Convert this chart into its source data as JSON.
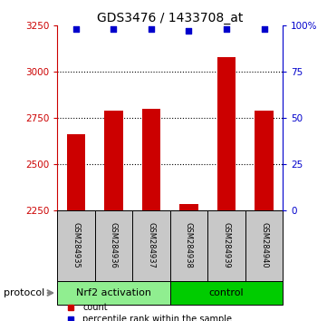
{
  "title": "GDS3476 / 1433708_at",
  "samples": [
    "GSM284935",
    "GSM284936",
    "GSM284937",
    "GSM284938",
    "GSM284939",
    "GSM284940"
  ],
  "counts": [
    2660,
    2790,
    2800,
    2285,
    3080,
    2790
  ],
  "percentiles": [
    98,
    98,
    98,
    97,
    98,
    98
  ],
  "ylim_left": [
    2250,
    3250
  ],
  "ylim_right": [
    0,
    100
  ],
  "yticks_left": [
    2250,
    2500,
    2750,
    3000,
    3250
  ],
  "yticks_right": [
    0,
    25,
    50,
    75,
    100
  ],
  "ytick_labels_right": [
    "0",
    "25",
    "50",
    "75",
    "100%"
  ],
  "groups": [
    {
      "label": "Nrf2 activation",
      "samples": [
        0,
        1,
        2
      ],
      "color": "#90EE90"
    },
    {
      "label": "control",
      "samples": [
        3,
        4,
        5
      ],
      "color": "#00CC00"
    }
  ],
  "bar_color": "#CC0000",
  "dot_color": "#0000CC",
  "bar_width": 0.5,
  "left_axis_color": "#CC0000",
  "right_axis_color": "#0000CC",
  "protocol_label": "protocol",
  "legend_count_label": "count",
  "legend_percentile_label": "percentile rank within the sample",
  "title_fontsize": 10,
  "tick_fontsize": 7.5,
  "sample_fontsize": 6,
  "group_fontsize": 8,
  "legend_fontsize": 7
}
